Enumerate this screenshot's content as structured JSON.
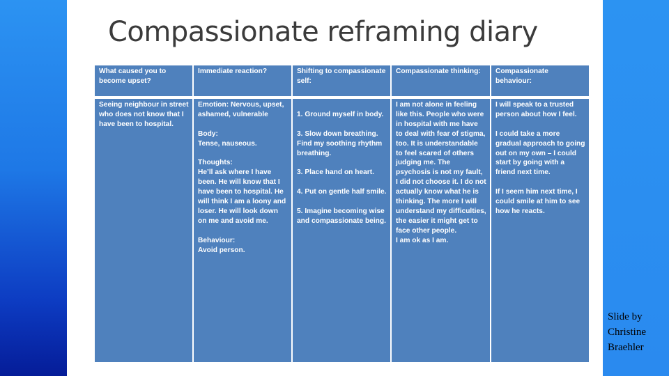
{
  "slide": {
    "title": "Compassionate reframing diary",
    "credit": {
      "line1": "Slide by",
      "line2": "Christine",
      "line3": "Braehler"
    }
  },
  "table": {
    "headers": [
      "What caused you to become upset?",
      "Immediate reaction?",
      "Shifting to compassionate self:",
      "Compassionate thinking:",
      "Compassionate behaviour:"
    ],
    "cells": {
      "cause": "Seeing neighbour in street who does not know that I have been to hospital.",
      "reaction": {
        "emotion": "Emotion: Nervous, upset, ashamed, vulnerable",
        "body_label": "Body:",
        "body_text": "Tense, nauseous.",
        "thoughts_label": "Thoughts:",
        "thoughts_text": "He’ll ask where I have been. He will know that I have been to hospital. He will think I am a loony and loser. He will look down on me and avoid me.",
        "behaviour_label": "Behaviour:",
        "behaviour_text": "Avoid person."
      },
      "shifting": [
        "1. Ground myself in body.",
        "3. Slow down breathing. Find my soothing rhythm breathing.",
        "3. Place hand on heart.",
        "4. Put on gentle half smile.",
        "5. Imagine becoming wise and compassionate being."
      ],
      "thinking": {
        "text": "I am not alone in feeling like this. People who were in hospital with me have to deal with fear of stigma, too. It is understandable to feel scared of others judging me. The psychosis is not my fault, I did not choose it. I do not actually know what he is thinking. The more I will understand my difficulties, the easier it might get to face other people.",
        "closing": "I am ok as I am."
      },
      "behaviour": [
        "I will speak to a trusted person about how I feel.",
        "I could take a more gradual approach to going out on my own – I could start by going with a friend next time.",
        "If I seem him next time, I could smile at him to see how he reacts."
      ]
    }
  },
  "colors": {
    "table_fill": "#4f81bd",
    "title_text": "#3b3b3b",
    "background_blue": "#1a6fe0"
  }
}
